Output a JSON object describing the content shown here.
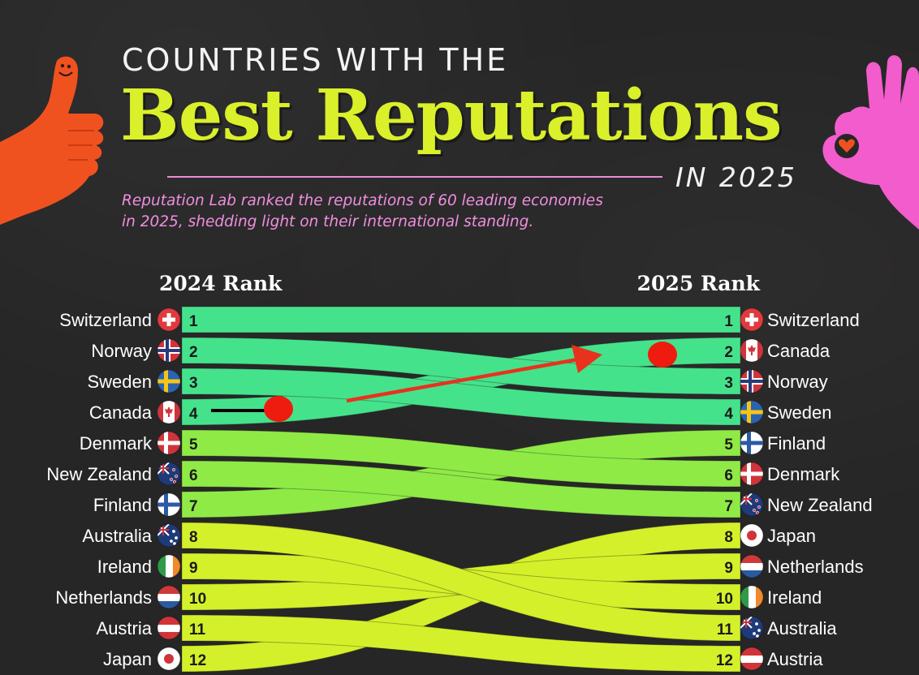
{
  "header": {
    "kicker": "COUNTRIES WITH THE",
    "headline": "Best Reputations",
    "year_tag": "IN 2025",
    "subtitle_line1": "Reputation Lab ranked the reputations of 60 leading economies",
    "subtitle_line2": "in 2025, shedding light on their international standing."
  },
  "chart_data": {
    "type": "slope",
    "left_header": "2024 Rank",
    "right_header": "2025 Rank",
    "rankings_2024": [
      {
        "rank": 1,
        "country": "Switzerland"
      },
      {
        "rank": 2,
        "country": "Norway"
      },
      {
        "rank": 3,
        "country": "Sweden"
      },
      {
        "rank": 4,
        "country": "Canada"
      },
      {
        "rank": 5,
        "country": "Denmark"
      },
      {
        "rank": 6,
        "country": "New Zealand"
      },
      {
        "rank": 7,
        "country": "Finland"
      },
      {
        "rank": 8,
        "country": "Australia"
      },
      {
        "rank": 9,
        "country": "Ireland"
      },
      {
        "rank": 10,
        "country": "Netherlands"
      },
      {
        "rank": 11,
        "country": "Austria"
      },
      {
        "rank": 12,
        "country": "Japan"
      }
    ],
    "rankings_2025": [
      {
        "rank": 1,
        "country": "Switzerland"
      },
      {
        "rank": 2,
        "country": "Canada"
      },
      {
        "rank": 3,
        "country": "Norway"
      },
      {
        "rank": 4,
        "country": "Sweden"
      },
      {
        "rank": 5,
        "country": "Finland"
      },
      {
        "rank": 6,
        "country": "Denmark"
      },
      {
        "rank": 7,
        "country": "New Zealand"
      },
      {
        "rank": 8,
        "country": "Japan"
      },
      {
        "rank": 9,
        "country": "Netherlands"
      },
      {
        "rank": 10,
        "country": "Ireland"
      },
      {
        "rank": 11,
        "country": "Australia"
      },
      {
        "rank": 12,
        "country": "Austria"
      }
    ],
    "band_colors": {
      "top": "#45e28c",
      "middle": "#8fea46",
      "bottom": "#d4f02a"
    }
  },
  "annotations": {
    "colors": {
      "marker": "#ee1c0e",
      "arrow": "#e8321e",
      "pointer": "#000000"
    },
    "markers": [
      "start-dot",
      "end-dot",
      "arrow"
    ]
  },
  "flags": {
    "Switzerland": "swiss-flag",
    "Norway": "nordic-cross-flag",
    "Sweden": "nordic-cross-flag",
    "Canada": "maple-leaf-flag",
    "Denmark": "nordic-cross-flag",
    "New Zealand": "southern-cross-flag",
    "Finland": "nordic-cross-flag",
    "Australia": "southern-cross-flag",
    "Ireland": "tricolor-flag",
    "Netherlands": "tricolor-flag",
    "Austria": "triband-flag",
    "Japan": "circle-flag"
  }
}
